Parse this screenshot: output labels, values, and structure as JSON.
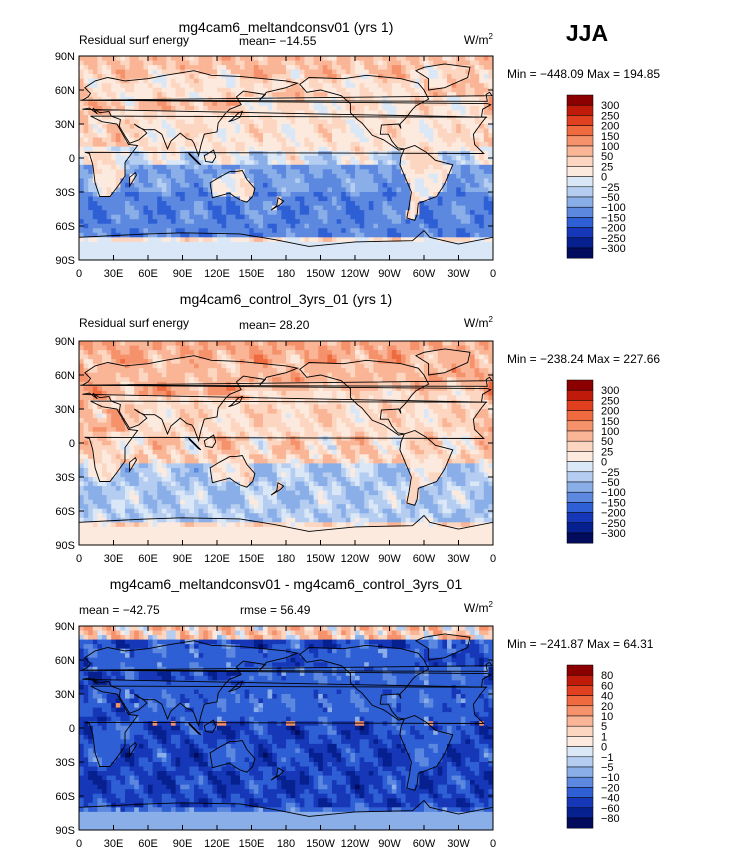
{
  "season": "JJA",
  "chart_data": [
    {
      "type": "heatmap",
      "title": "mg4cam6_meltandconsv01 (yrs 1)",
      "left_label": "Residual surf energy",
      "mean_text": "mean= −14.55",
      "units": "W/m",
      "units_exp": "2",
      "minmax": "Min = −448.09  Max = 194.85",
      "min": -448.09,
      "max": 194.85,
      "mean": -14.55,
      "x_ticks": [
        "0",
        "30E",
        "60E",
        "90E",
        "120E",
        "150E",
        "180",
        "150W",
        "120W",
        "90W",
        "60W",
        "30W",
        "0"
      ],
      "y_ticks": [
        "90N",
        "60N",
        "30N",
        "0",
        "30S",
        "60S",
        "90S"
      ],
      "levels": [
        "300",
        "250",
        "200",
        "150",
        "100",
        "50",
        "25",
        "0",
        "−25",
        "−50",
        "−100",
        "−150",
        "−200",
        "−250",
        "−300"
      ],
      "colors": [
        "#8b0000",
        "#c01a0a",
        "#e0401f",
        "#f06a40",
        "#f5926c",
        "#f9b596",
        "#fcd6c0",
        "#fdeade",
        "#d9e7f7",
        "#b4cdf0",
        "#8aaee8",
        "#5c88e0",
        "#2f5fd4",
        "#1638b8",
        "#07208f",
        "#020b5c"
      ]
    },
    {
      "type": "heatmap",
      "title": "mg4cam6_control_3yrs_01 (yrs 1)",
      "left_label": "Residual surf energy",
      "mean_text": "mean=  28.20",
      "units": "W/m",
      "units_exp": "2",
      "minmax": "Min = −238.24  Max = 227.66",
      "min": -238.24,
      "max": 227.66,
      "mean": 28.2,
      "x_ticks": [
        "0",
        "30E",
        "60E",
        "90E",
        "120E",
        "150E",
        "180",
        "150W",
        "120W",
        "90W",
        "60W",
        "30W",
        "0"
      ],
      "y_ticks": [
        "90N",
        "60N",
        "30N",
        "0",
        "30S",
        "60S",
        "90S"
      ],
      "levels": [
        "300",
        "250",
        "200",
        "150",
        "100",
        "50",
        "25",
        "0",
        "−25",
        "−50",
        "−100",
        "−150",
        "−200",
        "−250",
        "−300"
      ],
      "colors": [
        "#8b0000",
        "#c01a0a",
        "#e0401f",
        "#f06a40",
        "#f5926c",
        "#f9b596",
        "#fcd6c0",
        "#fdeade",
        "#d9e7f7",
        "#b4cdf0",
        "#8aaee8",
        "#5c88e0",
        "#2f5fd4",
        "#1638b8",
        "#07208f",
        "#020b5c"
      ]
    },
    {
      "type": "heatmap",
      "title": "mg4cam6_meltandconsv01 - mg4cam6_control_3yrs_01",
      "left_label": "mean = −42.75",
      "mean_text": "rmse =  56.49",
      "units": "W/m",
      "units_exp": "2",
      "minmax": "Min = −241.87  Max =  64.31",
      "min": -241.87,
      "max": 64.31,
      "mean": -42.75,
      "rmse": 56.49,
      "x_ticks": [
        "0",
        "30E",
        "60E",
        "90E",
        "120E",
        "150E",
        "180",
        "150W",
        "120W",
        "90W",
        "60W",
        "30W",
        "0"
      ],
      "y_ticks": [
        "90N",
        "60N",
        "30N",
        "0",
        "30S",
        "60S",
        "90S"
      ],
      "levels": [
        "80",
        "60",
        "40",
        "20",
        "10",
        "5",
        "1",
        "0",
        "−1",
        "−5",
        "−10",
        "−20",
        "−40",
        "−60",
        "−80"
      ],
      "colors": [
        "#8b0000",
        "#c01a0a",
        "#e0401f",
        "#f06a40",
        "#f5926c",
        "#f9b596",
        "#fcd6c0",
        "#fdeade",
        "#d9e7f7",
        "#b4cdf0",
        "#8aaee8",
        "#5c88e0",
        "#2f5fd4",
        "#1638b8",
        "#07208f",
        "#020b5c"
      ]
    }
  ]
}
